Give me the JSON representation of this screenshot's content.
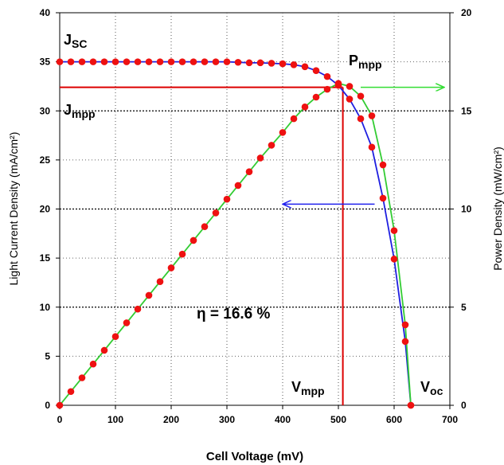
{
  "chart_data": {
    "type": "line",
    "xlabel": "Cell Voltage (mV)",
    "ylabel_left": "Light Current Density (mA/cm²)",
    "ylabel_right": "Power Density (mW/cm²)",
    "xlim": [
      0,
      700
    ],
    "ylim_left": [
      0,
      40
    ],
    "ylim_right": [
      0,
      20
    ],
    "x_ticks": [
      0,
      100,
      200,
      300,
      400,
      500,
      600,
      700
    ],
    "y_left_ticks": [
      0,
      5,
      10,
      15,
      20,
      25,
      30,
      35,
      40
    ],
    "y_right_ticks": [
      0,
      5,
      10,
      15,
      20
    ],
    "grid": "dotted horizontal and vertical",
    "series": [
      {
        "axis": "left",
        "color": "#1f1fe0",
        "x": [
          0,
          20,
          40,
          60,
          80,
          100,
          120,
          140,
          160,
          180,
          200,
          220,
          240,
          260,
          280,
          300,
          320,
          340,
          360,
          380,
          400,
          420,
          440,
          460,
          480,
          500,
          520,
          540,
          560,
          580,
          600,
          620,
          630
        ],
        "values": [
          35.0,
          35.0,
          35.0,
          35.0,
          35.0,
          35.0,
          35.0,
          35.0,
          35.0,
          35.0,
          35.0,
          35.0,
          35.0,
          35.0,
          35.0,
          35.0,
          34.95,
          34.9,
          34.9,
          34.85,
          34.8,
          34.7,
          34.5,
          34.1,
          33.5,
          32.6,
          31.2,
          29.2,
          26.3,
          21.1,
          14.9,
          6.5,
          0
        ]
      },
      {
        "axis": "right",
        "color": "#33cc33",
        "x": [
          0,
          20,
          40,
          60,
          80,
          100,
          120,
          140,
          160,
          180,
          200,
          220,
          240,
          260,
          280,
          300,
          320,
          340,
          360,
          380,
          400,
          420,
          440,
          460,
          480,
          500,
          520,
          540,
          560,
          580,
          600,
          620,
          630
        ],
        "values": [
          0,
          0.7,
          1.4,
          2.1,
          2.8,
          3.5,
          4.2,
          4.9,
          5.6,
          6.3,
          7.0,
          7.7,
          8.4,
          9.1,
          9.8,
          10.5,
          11.2,
          11.9,
          12.6,
          13.25,
          13.9,
          14.6,
          15.2,
          15.7,
          16.1,
          16.4,
          16.25,
          15.75,
          14.75,
          12.25,
          8.9,
          4.1,
          0
        ]
      }
    ],
    "markers": {
      "color": "#ee1111"
    },
    "mpp_lines": {
      "color": "#dd0000",
      "vmpp": 508,
      "jmpp": 32.4
    },
    "arrows": [
      {
        "color": "#33dd33",
        "direction": "right",
        "x_from": 540,
        "x_to": 690,
        "y": 32.4
      },
      {
        "color": "#2222ee",
        "direction": "left",
        "x_from": 565,
        "x_to": 400,
        "y": 20.5
      }
    ],
    "annotations": {
      "jsc": {
        "main": "J",
        "sub": "SC"
      },
      "jmpp": {
        "main": "J",
        "sub": "mpp"
      },
      "pmpp": {
        "main": "P",
        "sub": "mpp"
      },
      "vmpp": {
        "main": "V",
        "sub": "mpp"
      },
      "voc": {
        "main": "V",
        "sub": "oc"
      },
      "efficiency": "η = 16.6 %"
    }
  }
}
